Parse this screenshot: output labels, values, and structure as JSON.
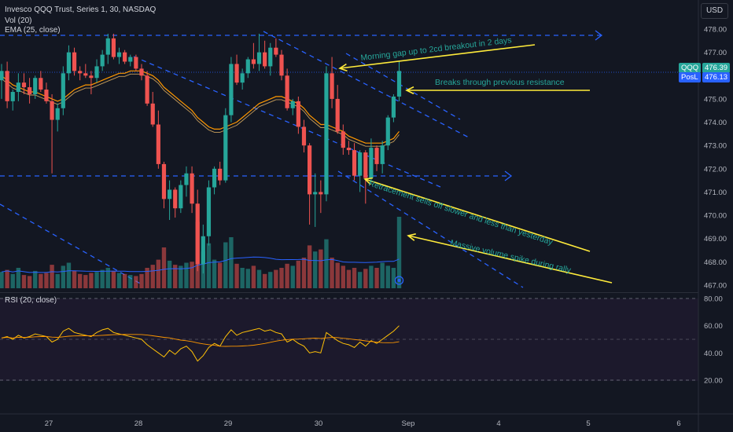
{
  "header": {
    "title": "Invesco QQQ Trust, Series 1, 30, NASDAQ",
    "vol_label": "Vol (20)",
    "ema_label": "EMA (25, close)",
    "rsi_label": "RSI (20, close)",
    "currency_button": "USD"
  },
  "price_tags": {
    "symbol": "QQQ",
    "last_price": "476.39",
    "position_label": "PosL",
    "position_price": "476.13"
  },
  "colors": {
    "background": "#131722",
    "bull": "#26a69a",
    "bear": "#ef5350",
    "ema": "#ff9800",
    "volume_ma": "#2962ff",
    "rsi": "#ffc107",
    "trendline": "#2962ff",
    "annotation": "#ffeb3b",
    "annotation_text": "#26a69a"
  },
  "chart_data": {
    "type": "candlestick",
    "price_axis": {
      "ticks": [
        "478.00",
        "477.00",
        "476.00",
        "475.00",
        "474.00",
        "473.00",
        "472.00",
        "471.00",
        "470.00",
        "469.00",
        "468.00",
        "467.00"
      ],
      "range": [
        466.9,
        478.3
      ]
    },
    "time_axis": {
      "ticks": [
        "27",
        "28",
        "29",
        "30",
        "Sep",
        "4",
        "5",
        "6"
      ],
      "candles_per_day": 13
    },
    "candles": [
      {
        "o": 475.8,
        "h": 476.5,
        "l": 475.0,
        "c": 476.2
      },
      {
        "o": 476.2,
        "h": 476.6,
        "l": 474.6,
        "c": 474.9
      },
      {
        "o": 474.9,
        "h": 475.4,
        "l": 474.5,
        "c": 475.3
      },
      {
        "o": 475.3,
        "h": 476.1,
        "l": 474.9,
        "c": 475.7
      },
      {
        "o": 475.7,
        "h": 476.1,
        "l": 475.2,
        "c": 475.5
      },
      {
        "o": 475.5,
        "h": 475.9,
        "l": 474.8,
        "c": 475.2
      },
      {
        "o": 475.2,
        "h": 476.0,
        "l": 475.0,
        "c": 475.9
      },
      {
        "o": 475.9,
        "h": 476.2,
        "l": 475.3,
        "c": 475.4
      },
      {
        "o": 475.4,
        "h": 475.7,
        "l": 474.8,
        "c": 474.9
      },
      {
        "o": 474.9,
        "h": 475.2,
        "l": 471.8,
        "c": 474.1
      },
      {
        "o": 474.1,
        "h": 474.8,
        "l": 473.6,
        "c": 474.6
      },
      {
        "o": 474.6,
        "h": 476.4,
        "l": 474.3,
        "c": 476.1
      },
      {
        "o": 476.1,
        "h": 477.3,
        "l": 475.8,
        "c": 477.0
      },
      {
        "o": 477.0,
        "h": 477.2,
        "l": 476.0,
        "c": 476.2
      },
      {
        "o": 476.2,
        "h": 476.4,
        "l": 475.8,
        "c": 476.1
      },
      {
        "o": 476.1,
        "h": 476.5,
        "l": 475.9,
        "c": 476.0
      },
      {
        "o": 476.0,
        "h": 476.2,
        "l": 475.2,
        "c": 475.9
      },
      {
        "o": 475.9,
        "h": 476.7,
        "l": 475.7,
        "c": 476.4
      },
      {
        "o": 476.4,
        "h": 477.1,
        "l": 476.2,
        "c": 476.9
      },
      {
        "o": 476.9,
        "h": 477.8,
        "l": 476.5,
        "c": 477.6
      },
      {
        "o": 477.6,
        "h": 477.8,
        "l": 476.7,
        "c": 476.8
      },
      {
        "o": 476.8,
        "h": 477.2,
        "l": 476.5,
        "c": 477.0
      },
      {
        "o": 477.0,
        "h": 477.1,
        "l": 476.5,
        "c": 476.6
      },
      {
        "o": 476.6,
        "h": 476.9,
        "l": 476.4,
        "c": 476.8
      },
      {
        "o": 476.8,
        "h": 476.9,
        "l": 476.2,
        "c": 476.3
      },
      {
        "o": 476.3,
        "h": 476.5,
        "l": 475.8,
        "c": 476.0
      },
      {
        "o": 476.0,
        "h": 476.2,
        "l": 474.7,
        "c": 474.8
      },
      {
        "o": 474.8,
        "h": 475.3,
        "l": 473.8,
        "c": 473.9
      },
      {
        "o": 473.9,
        "h": 474.5,
        "l": 472.0,
        "c": 472.2
      },
      {
        "o": 472.2,
        "h": 472.3,
        "l": 470.3,
        "c": 470.7
      },
      {
        "o": 470.7,
        "h": 471.5,
        "l": 469.8,
        "c": 471.1
      },
      {
        "o": 471.1,
        "h": 471.2,
        "l": 469.9,
        "c": 470.3
      },
      {
        "o": 470.3,
        "h": 471.5,
        "l": 470.1,
        "c": 471.3
      },
      {
        "o": 471.3,
        "h": 472.1,
        "l": 470.8,
        "c": 471.8
      },
      {
        "o": 471.8,
        "h": 472.1,
        "l": 470.1,
        "c": 470.5
      },
      {
        "o": 470.5,
        "h": 471.1,
        "l": 467.6,
        "c": 467.9
      },
      {
        "o": 467.9,
        "h": 469.6,
        "l": 467.5,
        "c": 469.1
      },
      {
        "o": 469.1,
        "h": 471.5,
        "l": 468.7,
        "c": 471.2
      },
      {
        "o": 471.2,
        "h": 472.1,
        "l": 470.9,
        "c": 472.0
      },
      {
        "o": 472.0,
        "h": 472.3,
        "l": 471.3,
        "c": 471.5
      },
      {
        "o": 471.5,
        "h": 474.6,
        "l": 471.4,
        "c": 474.3
      },
      {
        "o": 474.3,
        "h": 476.8,
        "l": 474.0,
        "c": 476.5
      },
      {
        "o": 476.5,
        "h": 476.9,
        "l": 475.6,
        "c": 475.7
      },
      {
        "o": 475.7,
        "h": 476.3,
        "l": 475.4,
        "c": 476.1
      },
      {
        "o": 476.1,
        "h": 476.8,
        "l": 475.9,
        "c": 476.7
      },
      {
        "o": 476.7,
        "h": 477.4,
        "l": 476.3,
        "c": 476.5
      },
      {
        "o": 476.5,
        "h": 477.8,
        "l": 476.2,
        "c": 477.0
      },
      {
        "o": 477.0,
        "h": 477.5,
        "l": 476.3,
        "c": 476.4
      },
      {
        "o": 476.4,
        "h": 477.4,
        "l": 476.0,
        "c": 477.2
      },
      {
        "o": 477.2,
        "h": 477.6,
        "l": 476.8,
        "c": 476.9
      },
      {
        "o": 476.9,
        "h": 477.1,
        "l": 475.8,
        "c": 476.0
      },
      {
        "o": 476.0,
        "h": 476.3,
        "l": 474.5,
        "c": 474.6
      },
      {
        "o": 474.6,
        "h": 475.0,
        "l": 474.3,
        "c": 474.9
      },
      {
        "o": 474.9,
        "h": 475.1,
        "l": 473.5,
        "c": 473.8
      },
      {
        "o": 473.8,
        "h": 474.1,
        "l": 472.7,
        "c": 473.0
      },
      {
        "o": 473.0,
        "h": 473.1,
        "l": 469.6,
        "c": 470.9
      },
      {
        "o": 470.9,
        "h": 471.8,
        "l": 469.5,
        "c": 471.0
      },
      {
        "o": 471.0,
        "h": 471.5,
        "l": 470.1,
        "c": 470.9
      },
      {
        "o": 470.9,
        "h": 476.4,
        "l": 470.6,
        "c": 476.1
      },
      {
        "o": 476.1,
        "h": 476.8,
        "l": 474.6,
        "c": 475.0
      },
      {
        "o": 475.0,
        "h": 475.6,
        "l": 473.5,
        "c": 473.6
      },
      {
        "o": 473.6,
        "h": 473.9,
        "l": 472.6,
        "c": 472.9
      },
      {
        "o": 472.9,
        "h": 473.2,
        "l": 472.6,
        "c": 472.8
      },
      {
        "o": 472.8,
        "h": 473.1,
        "l": 471.5,
        "c": 471.7
      },
      {
        "o": 471.7,
        "h": 472.8,
        "l": 471.0,
        "c": 472.7
      },
      {
        "o": 472.7,
        "h": 472.8,
        "l": 470.5,
        "c": 471.6
      },
      {
        "o": 471.6,
        "h": 473.3,
        "l": 471.4,
        "c": 472.9
      },
      {
        "o": 472.9,
        "h": 473.0,
        "l": 471.9,
        "c": 472.2
      },
      {
        "o": 472.2,
        "h": 473.2,
        "l": 471.8,
        "c": 473.0
      },
      {
        "o": 473.0,
        "h": 474.3,
        "l": 472.8,
        "c": 474.2
      },
      {
        "o": 474.2,
        "h": 475.2,
        "l": 474.0,
        "c": 475.1
      },
      {
        "o": 475.1,
        "h": 476.6,
        "l": 474.9,
        "c": 476.2
      }
    ],
    "volume": [
      16,
      18,
      14,
      20,
      13,
      12,
      17,
      14,
      15,
      23,
      14,
      22,
      25,
      17,
      14,
      13,
      15,
      16,
      18,
      20,
      17,
      15,
      14,
      13,
      12,
      14,
      20,
      23,
      28,
      40,
      27,
      23,
      22,
      25,
      26,
      65,
      36,
      44,
      28,
      25,
      45,
      50,
      24,
      20,
      19,
      22,
      18,
      14,
      16,
      18,
      20,
      24,
      22,
      27,
      30,
      42,
      36,
      38,
      48,
      30,
      25,
      22,
      18,
      20,
      16,
      19,
      22,
      20,
      25,
      22,
      20,
      70
    ],
    "ema_25": [
      476.0,
      475.8,
      475.6,
      475.5,
      475.4,
      475.3,
      475.3,
      475.2,
      475.1,
      475.0,
      474.9,
      475.0,
      475.2,
      475.4,
      475.5,
      475.6,
      475.6,
      475.7,
      475.8,
      475.9,
      476.0,
      476.1,
      476.1,
      476.2,
      476.2,
      476.2,
      476.1,
      476.0,
      475.8,
      475.5,
      475.3,
      475.1,
      474.9,
      474.7,
      474.5,
      474.2,
      474.0,
      473.8,
      473.7,
      473.7,
      473.8,
      473.9,
      474.0,
      474.2,
      474.4,
      474.6,
      474.8,
      474.9,
      475.0,
      475.1,
      475.1,
      475.0,
      474.9,
      474.8,
      474.6,
      474.3,
      474.1,
      473.9,
      473.9,
      473.8,
      473.7,
      473.6,
      473.4,
      473.3,
      473.2,
      473.1,
      473.1,
      473.1,
      473.1,
      473.2,
      473.3,
      473.6
    ],
    "rsi": [
      51,
      52,
      50,
      53,
      51,
      52,
      54,
      53,
      52,
      48,
      50,
      56,
      58,
      55,
      54,
      53,
      52,
      55,
      57,
      58,
      55,
      54,
      53,
      52,
      51,
      50,
      46,
      43,
      40,
      37,
      42,
      39,
      43,
      45,
      41,
      34,
      38,
      44,
      47,
      45,
      52,
      57,
      53,
      55,
      56,
      57,
      58,
      56,
      57,
      55,
      54,
      48,
      50,
      47,
      45,
      40,
      41,
      40,
      55,
      52,
      49,
      47,
      46,
      44,
      48,
      45,
      49,
      47,
      50,
      53,
      56,
      60
    ],
    "rsi_ma": 48,
    "rsi_axis": {
      "ticks": [
        "80.00",
        "60.00",
        "40.00",
        "20.00"
      ],
      "range": [
        10,
        90
      ]
    },
    "annotations": [
      {
        "text": "Morning gap up to 2cd breakout in 2 days"
      },
      {
        "text": "Breaks through previous resistance"
      },
      {
        "text": "Retracement sells off slower and less than yesterday"
      },
      {
        "text": "Massive volume spike during rally"
      }
    ]
  }
}
